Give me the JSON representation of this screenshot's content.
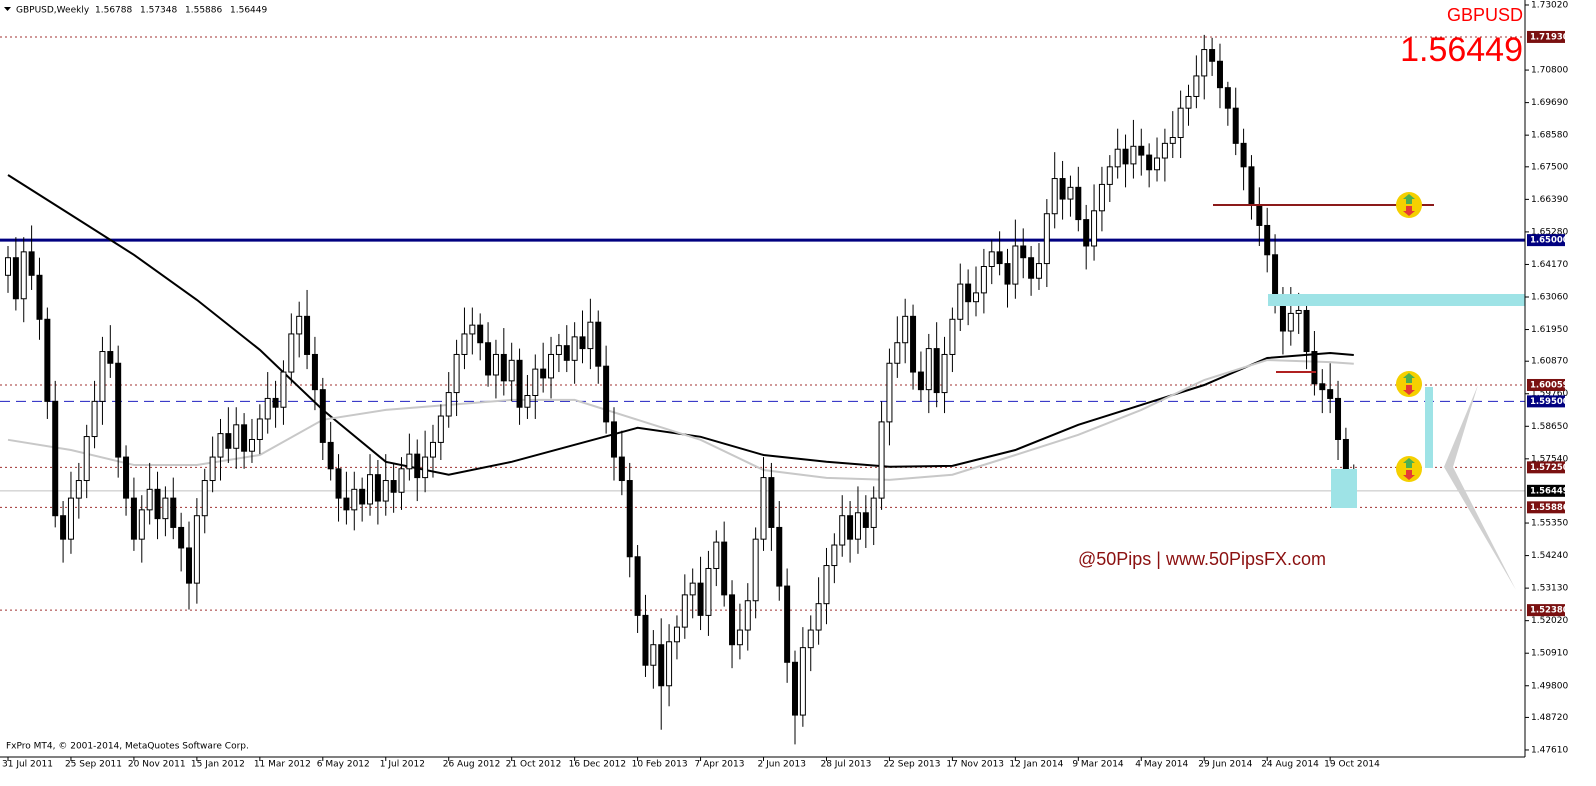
{
  "chart_data": {
    "type": "candlestick",
    "title": "GBPUSD,Weekly",
    "header_values": [
      1.56788,
      1.57348,
      1.55886,
      1.56449
    ],
    "symbol": "GBPUSD",
    "price": 1.56449,
    "watermark": "@50Pips | www.50PipsFX.com",
    "footer": "FxPro MT4, © 2001-2014, MetaQuotes Software Corp.",
    "up_color": "#ffffff",
    "down_color": "#000000",
    "x": [
      "31 Jul 2011",
      null,
      null,
      null,
      null,
      null,
      null,
      null,
      "25 Sep 2011",
      null,
      null,
      null,
      null,
      null,
      null,
      null,
      "20 Nov 2011",
      null,
      null,
      null,
      null,
      null,
      null,
      null,
      "15 Jan 2012",
      null,
      null,
      null,
      null,
      null,
      null,
      null,
      "11 Mar 2012",
      null,
      null,
      null,
      null,
      null,
      null,
      null,
      "6 May 2012",
      null,
      null,
      null,
      null,
      null,
      null,
      null,
      "1 Jul 2012",
      null,
      null,
      null,
      null,
      null,
      null,
      null,
      "26 Aug 2012",
      null,
      null,
      null,
      null,
      null,
      null,
      null,
      "21 Oct 2012",
      null,
      null,
      null,
      null,
      null,
      null,
      null,
      "16 Dec 2012",
      null,
      null,
      null,
      null,
      null,
      null,
      null,
      "10 Feb 2013",
      null,
      null,
      null,
      null,
      null,
      null,
      null,
      "7 Apr 2013",
      null,
      null,
      null,
      null,
      null,
      null,
      null,
      "2 Jun 2013",
      null,
      null,
      null,
      null,
      null,
      null,
      null,
      "28 Jul 2013",
      null,
      null,
      null,
      null,
      null,
      null,
      null,
      "22 Sep 2013",
      null,
      null,
      null,
      null,
      null,
      null,
      null,
      "17 Nov 2013",
      null,
      null,
      null,
      null,
      null,
      null,
      null,
      "12 Jan 2014",
      null,
      null,
      null,
      null,
      null,
      null,
      null,
      "9 Mar 2014",
      null,
      null,
      null,
      null,
      null,
      null,
      null,
      "4 May 2014",
      null,
      null,
      null,
      null,
      null,
      null,
      null,
      "29 Jun 2014",
      null,
      null,
      null,
      null,
      null,
      null,
      null,
      "24 Aug 2014",
      null,
      null,
      null,
      null,
      null,
      null,
      null,
      "19 Oct 2014",
      null,
      null,
      null
    ],
    "open": [
      1.638,
      1.644,
      1.63,
      1.646,
      1.638,
      1.623,
      1.595,
      1.556,
      1.548,
      1.562,
      1.568,
      1.583,
      1.595,
      1.612,
      1.608,
      1.576,
      1.562,
      1.548,
      1.558,
      1.565,
      1.555,
      1.562,
      1.552,
      1.545,
      1.533,
      1.556,
      1.568,
      1.576,
      1.584,
      1.579,
      1.587,
      1.578,
      1.582,
      1.589,
      1.596,
      1.593,
      1.605,
      1.618,
      1.624,
      1.611,
      1.599,
      1.581,
      1.572,
      1.562,
      1.558,
      1.565,
      1.56,
      1.57,
      1.561,
      1.568,
      1.564,
      1.572,
      1.577,
      1.569,
      1.576,
      1.581,
      1.59,
      1.598,
      1.611,
      1.618,
      1.621,
      1.615,
      1.604,
      1.611,
      1.602,
      1.609,
      1.593,
      1.597,
      1.606,
      1.603,
      1.611,
      1.614,
      1.609,
      1.617,
      1.613,
      1.622,
      1.607,
      1.588,
      1.576,
      1.568,
      1.542,
      1.522,
      1.505,
      1.512,
      1.498,
      1.513,
      1.518,
      1.529,
      1.533,
      1.522,
      1.538,
      1.547,
      1.529,
      1.512,
      1.517,
      1.527,
      1.548,
      1.569,
      1.552,
      1.532,
      1.506,
      1.488,
      1.511,
      1.517,
      1.526,
      1.539,
      1.546,
      1.556,
      1.548,
      1.557,
      1.552,
      1.562,
      1.588,
      1.608,
      1.615,
      1.624,
      1.605,
      1.599,
      1.613,
      1.598,
      1.611,
      1.623,
      1.635,
      1.629,
      1.632,
      1.641,
      1.646,
      1.642,
      1.635,
      1.648,
      1.644,
      1.637,
      1.642,
      1.659,
      1.671,
      1.664,
      1.668,
      1.657,
      1.648,
      1.66,
      1.669,
      1.675,
      1.681,
      1.676,
      1.682,
      1.679,
      1.674,
      1.678,
      1.683,
      1.685,
      1.695,
      1.699,
      1.706,
      1.715,
      1.711,
      1.702,
      1.695,
      1.683,
      1.675,
      1.662,
      1.655,
      1.645,
      1.629,
      1.619,
      1.625,
      1.626,
      1.612,
      1.601,
      1.599,
      1.596,
      1.582,
      1.56788
    ],
    "high": [
      1.648,
      1.651,
      1.651,
      1.655,
      1.644,
      1.627,
      1.602,
      1.561,
      1.571,
      1.574,
      1.587,
      1.602,
      1.617,
      1.621,
      1.614,
      1.58,
      1.569,
      1.563,
      1.574,
      1.571,
      1.566,
      1.569,
      1.557,
      1.554,
      1.562,
      1.572,
      1.583,
      1.589,
      1.593,
      1.593,
      1.591,
      1.589,
      1.594,
      1.605,
      1.602,
      1.609,
      1.625,
      1.629,
      1.633,
      1.617,
      1.603,
      1.588,
      1.577,
      1.571,
      1.571,
      1.569,
      1.577,
      1.575,
      1.577,
      1.574,
      1.576,
      1.584,
      1.582,
      1.585,
      1.587,
      1.594,
      1.605,
      1.616,
      1.627,
      1.627,
      1.625,
      1.622,
      1.616,
      1.62,
      1.615,
      1.613,
      1.604,
      1.611,
      1.615,
      1.617,
      1.618,
      1.621,
      1.622,
      1.626,
      1.63,
      1.626,
      1.614,
      1.593,
      1.585,
      1.574,
      1.546,
      1.529,
      1.517,
      1.521,
      1.519,
      1.522,
      1.536,
      1.538,
      1.542,
      1.544,
      1.551,
      1.554,
      1.534,
      1.526,
      1.533,
      1.552,
      1.576,
      1.574,
      1.561,
      1.538,
      1.51,
      1.518,
      1.522,
      1.535,
      1.545,
      1.55,
      1.563,
      1.561,
      1.566,
      1.563,
      1.566,
      1.595,
      1.613,
      1.624,
      1.63,
      1.628,
      1.612,
      1.618,
      1.622,
      1.617,
      1.627,
      1.642,
      1.64,
      1.641,
      1.647,
      1.65,
      1.653,
      1.647,
      1.657,
      1.654,
      1.648,
      1.649,
      1.664,
      1.68,
      1.677,
      1.672,
      1.675,
      1.662,
      1.669,
      1.675,
      1.679,
      1.688,
      1.686,
      1.691,
      1.688,
      1.683,
      1.685,
      1.688,
      1.694,
      1.701,
      1.703,
      1.713,
      1.72,
      1.719,
      1.717,
      1.704,
      1.702,
      1.688,
      1.679,
      1.668,
      1.661,
      1.652,
      1.634,
      1.634,
      1.632,
      1.63,
      1.619,
      1.606,
      1.608,
      1.602,
      1.586,
      1.57348
    ],
    "low": [
      1.632,
      1.626,
      1.622,
      1.633,
      1.616,
      1.589,
      1.552,
      1.54,
      1.543,
      1.555,
      1.562,
      1.579,
      1.587,
      1.603,
      1.569,
      1.556,
      1.544,
      1.54,
      1.553,
      1.548,
      1.549,
      1.548,
      1.537,
      1.524,
      1.526,
      1.55,
      1.564,
      1.568,
      1.574,
      1.572,
      1.572,
      1.574,
      1.577,
      1.584,
      1.586,
      1.587,
      1.601,
      1.61,
      1.606,
      1.592,
      1.575,
      1.568,
      1.554,
      1.553,
      1.551,
      1.554,
      1.556,
      1.553,
      1.556,
      1.557,
      1.558,
      1.568,
      1.561,
      1.564,
      1.569,
      1.575,
      1.586,
      1.59,
      1.606,
      1.611,
      1.609,
      1.6,
      1.596,
      1.597,
      1.595,
      1.587,
      1.589,
      1.589,
      1.598,
      1.596,
      1.605,
      1.605,
      1.601,
      1.608,
      1.606,
      1.601,
      1.584,
      1.568,
      1.563,
      1.535,
      1.516,
      1.501,
      1.497,
      1.483,
      1.491,
      1.507,
      1.514,
      1.521,
      1.517,
      1.515,
      1.532,
      1.525,
      1.504,
      1.507,
      1.51,
      1.521,
      1.544,
      1.544,
      1.527,
      1.499,
      1.478,
      1.484,
      1.503,
      1.512,
      1.519,
      1.533,
      1.542,
      1.54,
      1.543,
      1.545,
      1.546,
      1.558,
      1.58,
      1.603,
      1.608,
      1.599,
      1.595,
      1.591,
      1.593,
      1.591,
      1.605,
      1.619,
      1.621,
      1.624,
      1.625,
      1.635,
      1.638,
      1.627,
      1.63,
      1.637,
      1.631,
      1.633,
      1.634,
      1.654,
      1.657,
      1.658,
      1.653,
      1.64,
      1.643,
      1.653,
      1.663,
      1.671,
      1.668,
      1.671,
      1.672,
      1.668,
      1.67,
      1.67,
      1.678,
      1.678,
      1.689,
      1.695,
      1.698,
      1.706,
      1.695,
      1.689,
      1.679,
      1.667,
      1.657,
      1.648,
      1.639,
      1.625,
      1.611,
      1.614,
      1.618,
      1.606,
      1.597,
      1.591,
      1.591,
      1.575,
      1.566,
      1.55886
    ],
    "close": [
      1.644,
      1.63,
      1.646,
      1.638,
      1.623,
      1.595,
      1.556,
      1.548,
      1.562,
      1.568,
      1.583,
      1.595,
      1.612,
      1.608,
      1.576,
      1.562,
      1.548,
      1.558,
      1.565,
      1.555,
      1.562,
      1.552,
      1.545,
      1.533,
      1.556,
      1.568,
      1.576,
      1.584,
      1.579,
      1.587,
      1.578,
      1.582,
      1.589,
      1.596,
      1.593,
      1.605,
      1.618,
      1.624,
      1.611,
      1.599,
      1.581,
      1.572,
      1.562,
      1.558,
      1.565,
      1.56,
      1.57,
      1.561,
      1.568,
      1.564,
      1.572,
      1.577,
      1.569,
      1.576,
      1.581,
      1.59,
      1.598,
      1.611,
      1.618,
      1.621,
      1.615,
      1.604,
      1.611,
      1.602,
      1.609,
      1.593,
      1.597,
      1.606,
      1.603,
      1.611,
      1.614,
      1.609,
      1.617,
      1.613,
      1.622,
      1.607,
      1.588,
      1.576,
      1.568,
      1.542,
      1.522,
      1.505,
      1.512,
      1.498,
      1.513,
      1.518,
      1.529,
      1.533,
      1.522,
      1.538,
      1.547,
      1.529,
      1.512,
      1.517,
      1.527,
      1.548,
      1.569,
      1.552,
      1.532,
      1.506,
      1.488,
      1.511,
      1.517,
      1.526,
      1.539,
      1.546,
      1.556,
      1.548,
      1.557,
      1.552,
      1.562,
      1.588,
      1.608,
      1.615,
      1.624,
      1.605,
      1.599,
      1.613,
      1.598,
      1.611,
      1.623,
      1.635,
      1.629,
      1.632,
      1.641,
      1.646,
      1.642,
      1.635,
      1.648,
      1.644,
      1.637,
      1.642,
      1.659,
      1.671,
      1.664,
      1.668,
      1.657,
      1.648,
      1.66,
      1.669,
      1.675,
      1.681,
      1.676,
      1.682,
      1.679,
      1.674,
      1.678,
      1.683,
      1.685,
      1.695,
      1.699,
      1.706,
      1.715,
      1.711,
      1.702,
      1.695,
      1.683,
      1.675,
      1.662,
      1.655,
      1.645,
      1.629,
      1.619,
      1.625,
      1.626,
      1.612,
      1.601,
      1.599,
      1.596,
      1.582,
      1.572,
      1.56449
    ],
    "ma": [
      {
        "color": "#000000",
        "x": [
          0,
          8,
          16,
          24,
          32,
          40,
          48,
          56,
          64,
          72,
          80,
          88,
          96,
          104,
          112,
          120,
          128,
          136,
          144,
          152,
          160,
          168,
          171
        ],
        "values": [
          1.6722,
          1.6586,
          1.645,
          1.6296,
          1.6126,
          1.5921,
          1.5744,
          1.57,
          1.5744,
          1.5802,
          1.586,
          1.5829,
          1.5767,
          1.5744,
          1.5727,
          1.573,
          1.5784,
          1.587,
          1.5938,
          1.6006,
          1.6098,
          1.6115,
          1.6108
        ]
      },
      {
        "color": "#c8c8c8",
        "x": [
          0,
          8,
          16,
          24,
          32,
          40,
          48,
          56,
          64,
          72,
          80,
          88,
          96,
          104,
          112,
          120,
          128,
          136,
          144,
          152,
          160,
          168,
          171
        ],
        "values": [
          1.5819,
          1.5784,
          1.5733,
          1.5733,
          1.5767,
          1.5887,
          1.5921,
          1.5938,
          1.5955,
          1.5955,
          1.5887,
          1.5819,
          1.5716,
          1.5689,
          1.5682,
          1.57,
          1.5767,
          1.5836,
          1.5921,
          1.6023,
          1.6091,
          1.6084,
          1.6078
        ]
      }
    ],
    "levels": [
      {
        "value": 1.7193,
        "label": "1.71930",
        "color": "#a03030",
        "style": "dotted",
        "label_color": "#7a1010"
      },
      {
        "value": 1.65,
        "label": "1.65000",
        "color": "#000080",
        "style": "thick",
        "label_color": "#000080"
      },
      {
        "value": 1.60059,
        "color": "#a03030",
        "style": "dotted",
        "label_color": "#7a1010"
      },
      {
        "value": 1.595,
        "label": "1.59500",
        "color": "#2020c0",
        "style": "dashed",
        "label_color": "#000080"
      },
      {
        "value": 1.5725,
        "label": "1.57250",
        "color": "#a03030",
        "style": "dotted",
        "label_color": "#7a1010"
      },
      {
        "value": 1.56449,
        "color": "#c0c0c0",
        "style": "thin",
        "label_color": "#000000"
      },
      {
        "value": 1.55886,
        "color": "#a03030",
        "style": "dotted",
        "label_color": "#7a1010"
      },
      {
        "value": 1.5238,
        "label": "1.52380",
        "color": "#a03030",
        "style": "dotted",
        "label_color": "#7a1010"
      }
    ],
    "ylim": [
      1.4737,
      1.7319
    ],
    "yticks": [
      {
        "value": 1.7302,
        "label": "1.73020"
      },
      {
        "value": 1.708,
        "label": "1.70800"
      },
      {
        "value": 1.6969,
        "label": "1.69690"
      },
      {
        "value": 1.6858,
        "label": "1.68580"
      },
      {
        "value": 1.675,
        "label": "1.67500"
      },
      {
        "value": 1.6639,
        "label": "1.66390"
      },
      {
        "value": 1.6528,
        "label": "1.65280"
      },
      {
        "value": 1.6417,
        "label": "1.64170"
      },
      {
        "value": 1.6306,
        "label": "1.63060"
      },
      {
        "value": 1.6195,
        "label": "1.61950"
      },
      {
        "value": 1.6087,
        "label": "1.60870"
      },
      {
        "value": 1.5976,
        "label": "1.59760"
      },
      {
        "value": 1.5865,
        "label": "1.58650"
      },
      {
        "value": 1.5754,
        "label": "1.57540"
      },
      {
        "value": 1.5535,
        "label": "1.55350"
      },
      {
        "value": 1.5424,
        "label": "1.54240"
      },
      {
        "value": 1.5313,
        "label": "1.53130"
      },
      {
        "value": 1.5202,
        "label": "1.52020"
      },
      {
        "value": 1.5091,
        "label": "1.50910"
      },
      {
        "value": 1.498,
        "label": "1.49800"
      },
      {
        "value": 1.4872,
        "label": "1.48720"
      },
      {
        "value": 1.4761,
        "label": "1.47610"
      }
    ]
  }
}
